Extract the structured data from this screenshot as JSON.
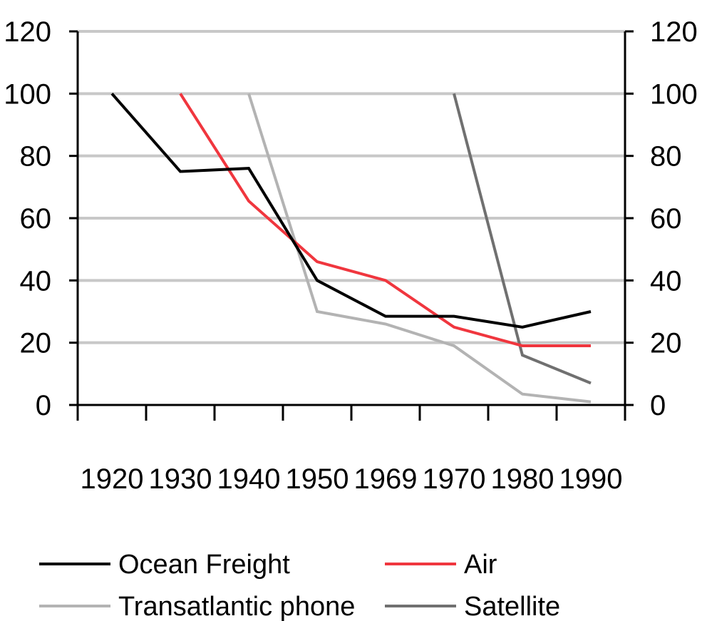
{
  "chart_data": {
    "type": "line",
    "title": "",
    "xlabel": "",
    "ylabel": "",
    "categories": [
      "1920",
      "1930",
      "1940",
      "1950",
      "1969",
      "1970",
      "1980",
      "1990"
    ],
    "ylim": [
      0,
      120
    ],
    "yticks": [
      0,
      20,
      40,
      60,
      80,
      100,
      120
    ],
    "secondary_yaxis": true,
    "grid": true,
    "legend_position": "bottom",
    "series": [
      {
        "name": "Ocean Freight",
        "color": "#000000",
        "values": [
          100,
          75,
          76,
          40,
          28.5,
          28.5,
          25,
          30
        ]
      },
      {
        "name": "Air",
        "color": "#f0363e",
        "values": [
          null,
          100,
          65.5,
          46,
          40,
          25,
          19,
          19
        ]
      },
      {
        "name": "Transatlantic phone",
        "color": "#b3b3b3",
        "values": [
          null,
          null,
          100,
          30,
          26,
          19,
          3.5,
          1
        ]
      },
      {
        "name": "Satellite",
        "color": "#707070",
        "values": [
          null,
          null,
          null,
          null,
          null,
          100,
          16,
          7
        ]
      }
    ]
  }
}
